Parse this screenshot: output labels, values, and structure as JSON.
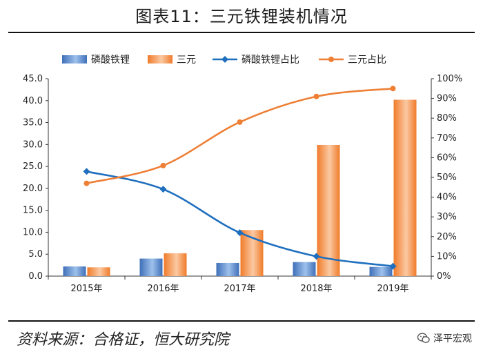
{
  "header": {
    "title": "图表11：三元铁锂装机情况"
  },
  "footer": {
    "source": "资料来源：合格证，恒大研究院",
    "watermark": "泽平宏观"
  },
  "colors": {
    "lfp_bar": "#3f6fb8",
    "ncm_bar": "#f07b2a",
    "lfp_line": "#1f6fbf",
    "ncm_line": "#ee7f35"
  },
  "chart_data": {
    "type": "bar",
    "categories": [
      "2015年",
      "2016年",
      "2017年",
      "2018年",
      "2019年"
    ],
    "series": [
      {
        "name": "磷酸铁锂",
        "type": "bar",
        "axis": "left",
        "values": [
          2.2,
          4.0,
          3.0,
          3.2,
          2.1
        ]
      },
      {
        "name": "三元",
        "type": "bar",
        "axis": "left",
        "values": [
          2.0,
          5.2,
          10.5,
          29.9,
          40.2
        ]
      },
      {
        "name": "磷酸铁锂占比",
        "type": "line",
        "axis": "right",
        "values": [
          53,
          44,
          22,
          10,
          5
        ]
      },
      {
        "name": "三元占比",
        "type": "line",
        "axis": "right",
        "values": [
          47,
          56,
          78,
          91,
          95
        ]
      }
    ],
    "y_left": {
      "min": 0,
      "max": 45,
      "step": 5,
      "ticks": [
        "0.0",
        "5.0",
        "10.0",
        "15.0",
        "20.0",
        "25.0",
        "30.0",
        "35.0",
        "40.0",
        "45.0"
      ]
    },
    "y_right": {
      "min": 0,
      "max": 100,
      "step": 10,
      "ticks": [
        "0%",
        "10%",
        "20%",
        "30%",
        "40%",
        "50%",
        "60%",
        "70%",
        "80%",
        "90%",
        "100%"
      ]
    },
    "legend_position": "top"
  }
}
